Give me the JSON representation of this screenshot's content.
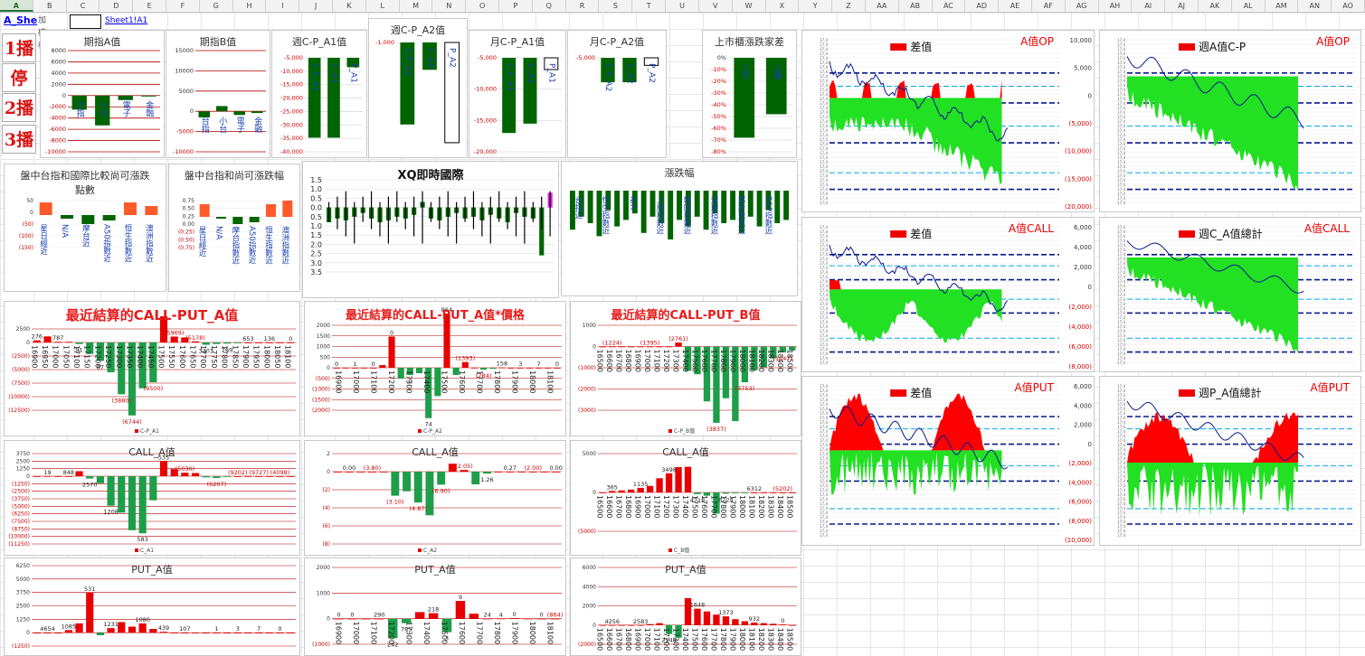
{
  "sheet": {
    "columns": [
      "A",
      "B",
      "C",
      "D",
      "E",
      "F",
      "G",
      "H",
      "I",
      "J",
      "K",
      "L",
      "M",
      "N",
      "O",
      "P",
      "Q",
      "R",
      "S",
      "T",
      "U",
      "V",
      "W",
      "X",
      "Y",
      "Z",
      "AA",
      "AB",
      "AC",
      "AD",
      "AE",
      "AF",
      "AG",
      "AH",
      "AI",
      "AJ",
      "AK",
      "AL",
      "AM",
      "AN",
      "AO"
    ],
    "active_column": "A",
    "cell_a1": "A_She",
    "cell_b1": "加權樣",
    "cell_d1": "Sheet1!A1"
  },
  "buttons": [
    "1播",
    "停",
    "2播",
    "3播"
  ],
  "colors": {
    "green": "#006400",
    "red": "#ff0000",
    "bright_green": "#22e022",
    "navy": "#0a1a8c",
    "grid_red": "#b30000"
  },
  "panels": {
    "p1": {
      "title": "期指A值",
      "ticks": [
        "8000",
        "6000",
        "4000",
        "2000",
        "0",
        "-2000",
        "-4000",
        "-6000",
        "-8000",
        "-10000"
      ],
      "labels": [
        "大指",
        "小台",
        "電子",
        "金融"
      ],
      "values": [
        -2500,
        -5300,
        -800,
        0
      ]
    },
    "p2": {
      "title": "期指B值",
      "ticks": [
        "15000",
        "10000",
        "5000",
        "0",
        "-5000",
        "-10000"
      ],
      "labels": [
        "台指",
        "小台",
        "電子",
        "金融"
      ],
      "values": [
        -1500,
        1300,
        -900,
        -400
      ]
    },
    "p3": {
      "title": "週C-P_A1值",
      "ticks": [
        "-5,000",
        "-10,000",
        "-15,000",
        "-20,000",
        "-25,000",
        "-30,000",
        "-35,000",
        "-40,000"
      ],
      "labels": [
        "C-P_A1",
        "C_A1",
        "P_A1"
      ],
      "values": [
        -34000,
        -34000,
        -4000
      ]
    },
    "p4": {
      "title": "週C-P_A2值",
      "ticks": [
        "-1,000"
      ],
      "labels": [
        "C-P_A2",
        "C_A2",
        "P_A2"
      ],
      "values": [
        -900,
        -300,
        -1100
      ]
    },
    "p5": {
      "title": "月C-P_A1值",
      "ticks": [
        "-5,000",
        "-10,000",
        "-15,000",
        "-20,000"
      ],
      "labels": [
        "C-P_A1",
        "C_A1",
        "P_A1"
      ],
      "values": [
        -16000,
        -14000,
        -2500
      ]
    },
    "p6": {
      "title": "月C-P_A2值",
      "ticks": [
        "-5,000"
      ],
      "labels": [
        "C-P_A2",
        "C_A2",
        "P_A2"
      ],
      "values": [
        -1300,
        -1300,
        -400
      ]
    },
    "p7": {
      "title": "上市櫃漲跌家差",
      "ticks": [
        "0%",
        "-10%",
        "-20%",
        "-30%",
        "-40%",
        "-50%",
        "-60%",
        "-70%",
        "-80%"
      ],
      "labels": [
        "上市",
        "上櫃"
      ],
      "values": [
        -68,
        -48
      ]
    },
    "p8": {
      "title": "盤中台指和國際比較尚可漲跌點數",
      "ticks": [
        "50",
        "0",
        "(50)",
        "(100)",
        "(150)"
      ],
      "labels": [
        "星日經近",
        "N/A",
        "摩台近",
        "A50指數近",
        "恒生指數近",
        "澳洲指數近"
      ]
    },
    "p9": {
      "title": "盤中台指和尚可漲跌幅",
      "ticks": [
        "0.75",
        "0.50",
        "0.25",
        "0.00",
        "(0.25)",
        "(0.50)",
        "(0.75)"
      ],
      "labels": [
        "星日經近",
        "N/A",
        "摩台指數近",
        "A50指數近",
        "恒生指數近",
        "澳洲指數近"
      ]
    },
    "p10": {
      "title": "XQ即時國際",
      "ticks": [
        "1.5",
        "1.0",
        "0.5",
        "0.0",
        "0.5",
        "1.0",
        "1.5",
        "2.0",
        "2.5",
        "3.0",
        "3.5"
      ]
    },
    "p11": {
      "title": "漲跌幅",
      "labels": [
        "台指近",
        "恒生指數近",
        "N/A",
        "上證指數近",
        "韓國指數近",
        "道瓊指數近",
        "那斯達克近",
        "S&P指數近"
      ]
    },
    "p12": {
      "title": "最近結算的CALL-PUT_A值",
      "ticks": [
        "2500",
        "0",
        "(2500)",
        "(5000)",
        "(7500)",
        "(10000)",
        "(12500)"
      ],
      "strikes": [
        "16900",
        "16950",
        "17000",
        "17050",
        "17100",
        "17150",
        "17200",
        "17250",
        "17300",
        "17350",
        "17400",
        "17450",
        "17500",
        "17550",
        "17600",
        "17650",
        "17700",
        "17750",
        "17800",
        "17850",
        "17900",
        "17950",
        "18000",
        "18050",
        "18100"
      ],
      "labels": [
        "276",
        "787",
        "91",
        "87",
        "(3880)",
        "(6744)",
        "(9500)",
        "(5969)",
        "(5178)",
        "3403",
        "769",
        "653",
        "136",
        "0"
      ],
      "legend": "C-P_A1"
    },
    "p13": {
      "title": "最近結算的CALL-PUT_A值*價格",
      "ticks": [
        "2000",
        "1500",
        "1000",
        "500",
        "0",
        "(500)",
        "(1000)",
        "(1500)",
        "(2000)"
      ],
      "strikes": [
        "16900",
        "17000",
        "17100",
        "17200",
        "17300",
        "17400",
        "17500",
        "17600",
        "17700",
        "17800",
        "17900",
        "18000",
        "18100"
      ],
      "labels": [
        "0",
        "1",
        "0",
        "0",
        "0",
        "74",
        "864",
        "(1393)",
        "(784)",
        "158",
        "3",
        "7",
        "0"
      ],
      "legend": "C-P_A2"
    },
    "p14": {
      "title": "最近結算的CALL-PUT_B值",
      "ticks": [
        "1000",
        "0",
        "(1000)",
        "(2000)",
        "(3000)"
      ],
      "strikes": [
        "16500",
        "16600",
        "16700",
        "16800",
        "16900",
        "17000",
        "17100",
        "17200",
        "17300",
        "17400",
        "17500",
        "17600",
        "17700",
        "17800",
        "17900",
        "18000",
        "18100",
        "18200",
        "18300",
        "18400",
        "18500"
      ],
      "labels": [
        "(1224)",
        "(1395)",
        "(2761)",
        "(3837)",
        "(3753)",
        "(1047)"
      ],
      "legend": "C-P_B值"
    },
    "p15": {
      "title": "CALL_A值",
      "ticks": [
        "3750",
        "2500",
        "1250",
        "0",
        "(1250)",
        "(2500)",
        "(3750)",
        "(5000)",
        "(6250)",
        "(7500)",
        "(8750)",
        "(10000)",
        "(11250)"
      ],
      "labels": [
        "19",
        "848",
        "2570",
        "1208",
        "583",
        "535",
        "(5030)",
        "(6207)",
        "(9202)",
        "(9727)",
        "(4098)"
      ],
      "legend": "C_A1"
    },
    "p16": {
      "title": "CALL_A值",
      "ticks": [
        "2",
        "0",
        "(2)",
        "(4)",
        "(6)",
        "(8)"
      ],
      "labels": [
        "0.00",
        "(3.80)",
        "(3.10)",
        "(4.87)",
        "(6.90)",
        "(2.05)",
        "1.26",
        "0.27",
        "(2.00)",
        "0.00"
      ],
      "legend": "C_A2"
    },
    "p17": {
      "title": "CALL_A值",
      "ticks": [
        "5000",
        "0",
        "(5000)"
      ],
      "strikes": [
        "16500",
        "16600",
        "16700",
        "16800",
        "16900",
        "17000",
        "17100",
        "17200",
        "17300",
        "17400",
        "17500",
        "17600",
        "17700",
        "17800",
        "17900",
        "18000",
        "18100",
        "18200",
        "18300",
        "18400",
        "18500"
      ],
      "labels": [
        "365",
        "1135",
        "3498",
        "4718",
        "6224",
        "6312",
        "(5202)"
      ],
      "legend": "C_B值"
    },
    "p18": {
      "title": "PUT_A值",
      "ticks": [
        "6250",
        "5000",
        "3750",
        "2500",
        "1250",
        "0",
        "(1250)"
      ],
      "labels": [
        "4654",
        "1085",
        "531",
        "1231",
        "1080",
        "439",
        "107",
        "1",
        "3",
        "7",
        "0"
      ]
    },
    "p19": {
      "title": "PUT_A值",
      "ticks": [
        "2000",
        "1000",
        "0",
        "(1000)"
      ],
      "strikes": [
        "16900",
        "17000",
        "17100",
        "17200",
        "17300",
        "17400",
        "17500",
        "17600",
        "17700",
        "17800",
        "17900",
        "18000",
        "18100"
      ],
      "labels": [
        "0",
        "0",
        "290",
        "242",
        "785",
        "218",
        "3",
        "9",
        "24",
        "4",
        "0",
        "0",
        "(864)"
      ]
    },
    "p20": {
      "title": "PUT_A值",
      "ticks": [
        "6000",
        "4000",
        "2000",
        "0",
        "(2000)"
      ],
      "strikes": [
        "16500",
        "16600",
        "16700",
        "16800",
        "16900",
        "17000",
        "17100",
        "17200",
        "17300",
        "17400",
        "17500",
        "17600",
        "17700",
        "17800",
        "17900",
        "18000",
        "18100",
        "18200",
        "18300",
        "18400",
        "18500"
      ],
      "labels": [
        "4256",
        "2583",
        "2148",
        "1648",
        "1373",
        "932",
        "0"
      ]
    }
  },
  "big_panels": {
    "b1": {
      "legend": "差值",
      "label": "A值OP",
      "ticks": [
        "10,000",
        "5,000",
        "0",
        "(5,000)",
        "(10,000)",
        "(15,000)",
        "(20,000)"
      ]
    },
    "b2": {
      "legend": "週A值C-P",
      "label": "A值OP",
      "ticks": []
    },
    "b3": {
      "legend": "差值",
      "label": "A值CALL",
      "ticks": [
        "6,000",
        "4,000",
        "2,000",
        "0",
        "(2,000)",
        "(4,000)",
        "(6,000)",
        "(8,000)"
      ]
    },
    "b4": {
      "legend": "週C_A值總計",
      "label": "A值CALL",
      "ticks": []
    },
    "b5": {
      "legend": "差值",
      "label": "A值PUT",
      "ticks": [
        "6,000",
        "4,000",
        "2,000",
        "0",
        "(2,000)",
        "(4,000)",
        "(6,000)",
        "(8,000)",
        "(10,000)"
      ]
    },
    "b6": {
      "legend": "週P_A值總計",
      "label": "A值PUT",
      "ticks": []
    }
  }
}
